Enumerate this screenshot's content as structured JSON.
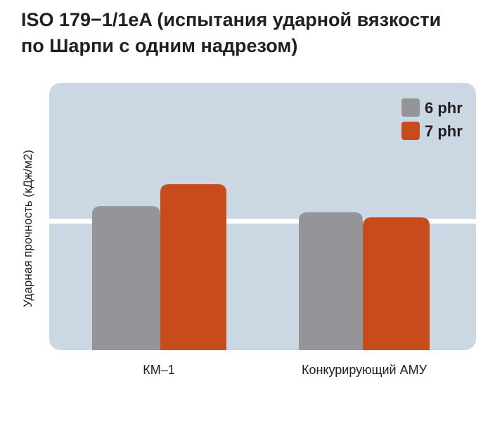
{
  "chart_data": {
    "type": "bar",
    "title": "ISO 179-1/1eA (испытания ударной вязкости по Шарпи с одним надрезом)",
    "title_lines": [
      "ISO 179−1/1eA (испытания ударной вязкости",
      "по Шарпи с одним надрезом)"
    ],
    "xlabel": "",
    "ylabel": "Ударная прочность (кДж/м2)",
    "categories": [
      "КМ–1",
      "Конкурирующий АМУ"
    ],
    "series": [
      {
        "name": "6 phr",
        "color": "#939598",
        "values": [
          53.9,
          51.6
        ]
      },
      {
        "name": "7 phr",
        "color": "#c84b1c",
        "values": [
          62.1,
          49.7
        ]
      }
    ],
    "ylim": [
      0,
      100
    ],
    "reference_line": 48.3,
    "units_note": "relative scale; axis has no tick labels",
    "legend_position": "top-right",
    "grid": false,
    "background_color": "#cbd7e3"
  }
}
